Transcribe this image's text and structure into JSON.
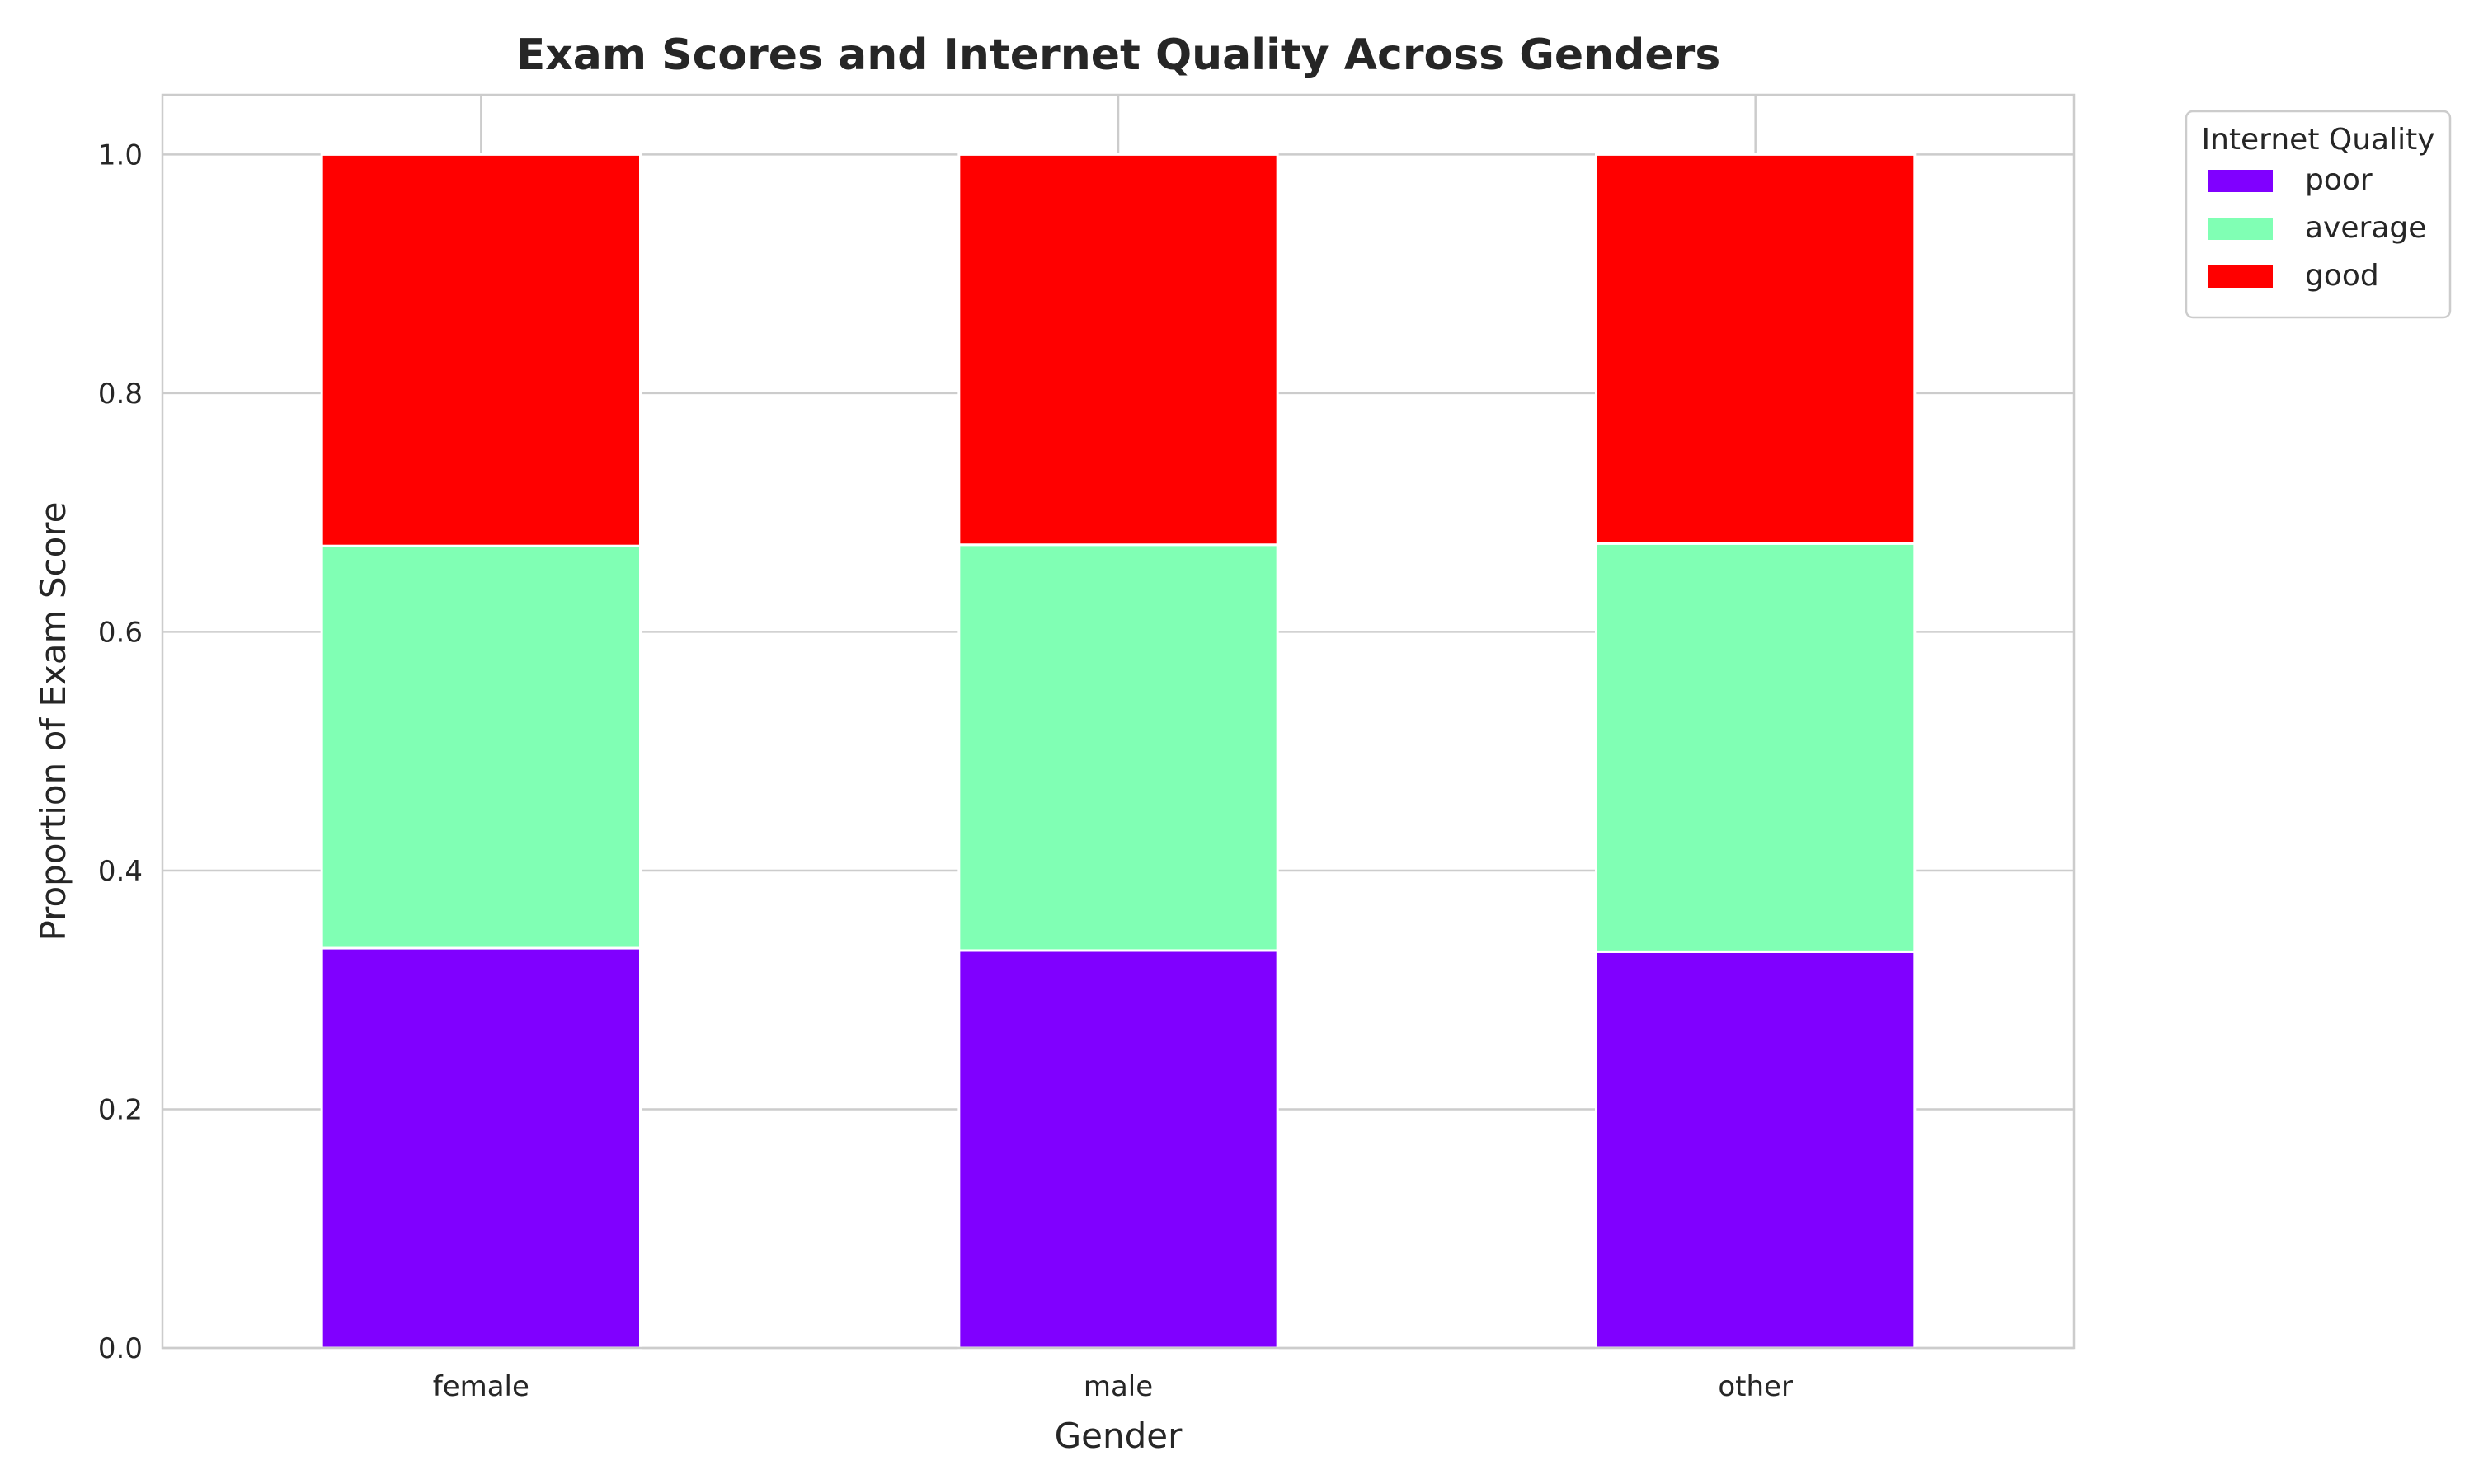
{
  "chart_data": {
    "type": "bar",
    "stacked": true,
    "title": "Exam Scores and Internet Quality Across Genders",
    "xlabel": "Gender",
    "ylabel": "Proportion of Exam Score",
    "categories": [
      "female",
      "male",
      "other"
    ],
    "series": [
      {
        "name": "poor",
        "color": "#8000ff",
        "values": [
          0.335,
          0.333,
          0.332
        ]
      },
      {
        "name": "average",
        "color": "#80ffb4",
        "values": [
          0.337,
          0.34,
          0.342
        ]
      },
      {
        "name": "good",
        "color": "#ff0000",
        "values": [
          0.328,
          0.327,
          0.326
        ]
      }
    ],
    "ylim": [
      0,
      1.05
    ],
    "yticks": [
      0.0,
      0.2,
      0.4,
      0.6,
      0.8,
      1.0
    ],
    "ytick_labels": [
      "0.0",
      "0.2",
      "0.4",
      "0.6",
      "0.8",
      "1.0"
    ],
    "grid": true,
    "legend": {
      "title": "Internet Quality",
      "placement": "outside-top-right"
    }
  }
}
